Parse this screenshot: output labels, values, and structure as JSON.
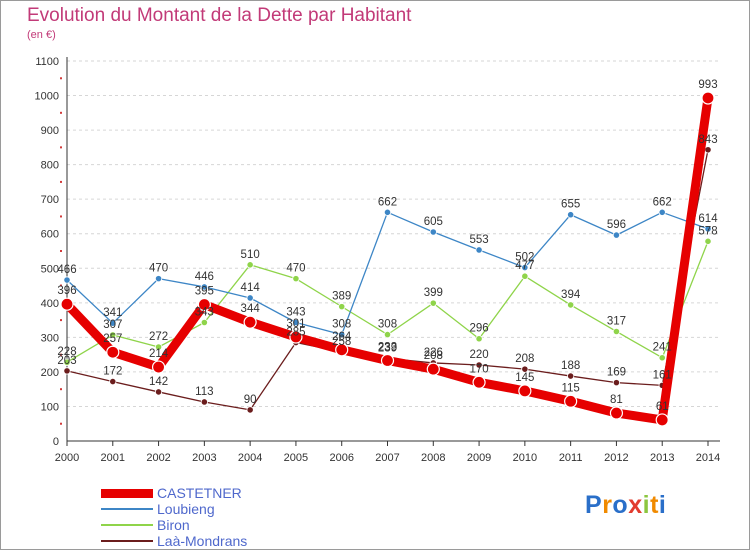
{
  "title": "Evolution du Montant de la Dette par Habitant",
  "subtitle": "(en €)",
  "logo_text": "Proxiti",
  "chart_data": {
    "type": "line",
    "title": "Evolution du Montant de la Dette par Habitant",
    "ylabel": "(en €)",
    "x": [
      "2000",
      "2001",
      "2002",
      "2003",
      "2004",
      "2005",
      "2006",
      "2007",
      "2008",
      "2009",
      "2010",
      "2011",
      "2012",
      "2013",
      "2014"
    ],
    "ylim": [
      0,
      1100
    ],
    "yticks": [
      0,
      100,
      200,
      300,
      400,
      500,
      600,
      700,
      800,
      900,
      1000,
      1100
    ],
    "grid": "horizontal dashed",
    "legend_position": "bottom-left",
    "series": [
      {
        "name": "Laà-Mondrans",
        "color": "#6b1d1d",
        "values": [
          203,
          172,
          142,
          113,
          90,
          285,
          258,
          239,
          226,
          220,
          208,
          188,
          169,
          161,
          843
        ]
      },
      {
        "name": "Biron",
        "color": "#8fd44a",
        "values": [
          228,
          307,
          272,
          343,
          510,
          470,
          389,
          308,
          399,
          296,
          477,
          394,
          317,
          241,
          578
        ]
      },
      {
        "name": "Loubieng",
        "color": "#3d86c6",
        "values": [
          466,
          341,
          470,
          446,
          414,
          343,
          308,
          662,
          605,
          553,
          502,
          655,
          596,
          662,
          614
        ]
      },
      {
        "name": "CASTETNER",
        "color": "#e60000",
        "values": [
          396,
          257,
          214,
          395,
          344,
          301,
          264,
          233,
          208,
          170,
          145,
          115,
          81,
          61,
          993
        ]
      }
    ]
  }
}
